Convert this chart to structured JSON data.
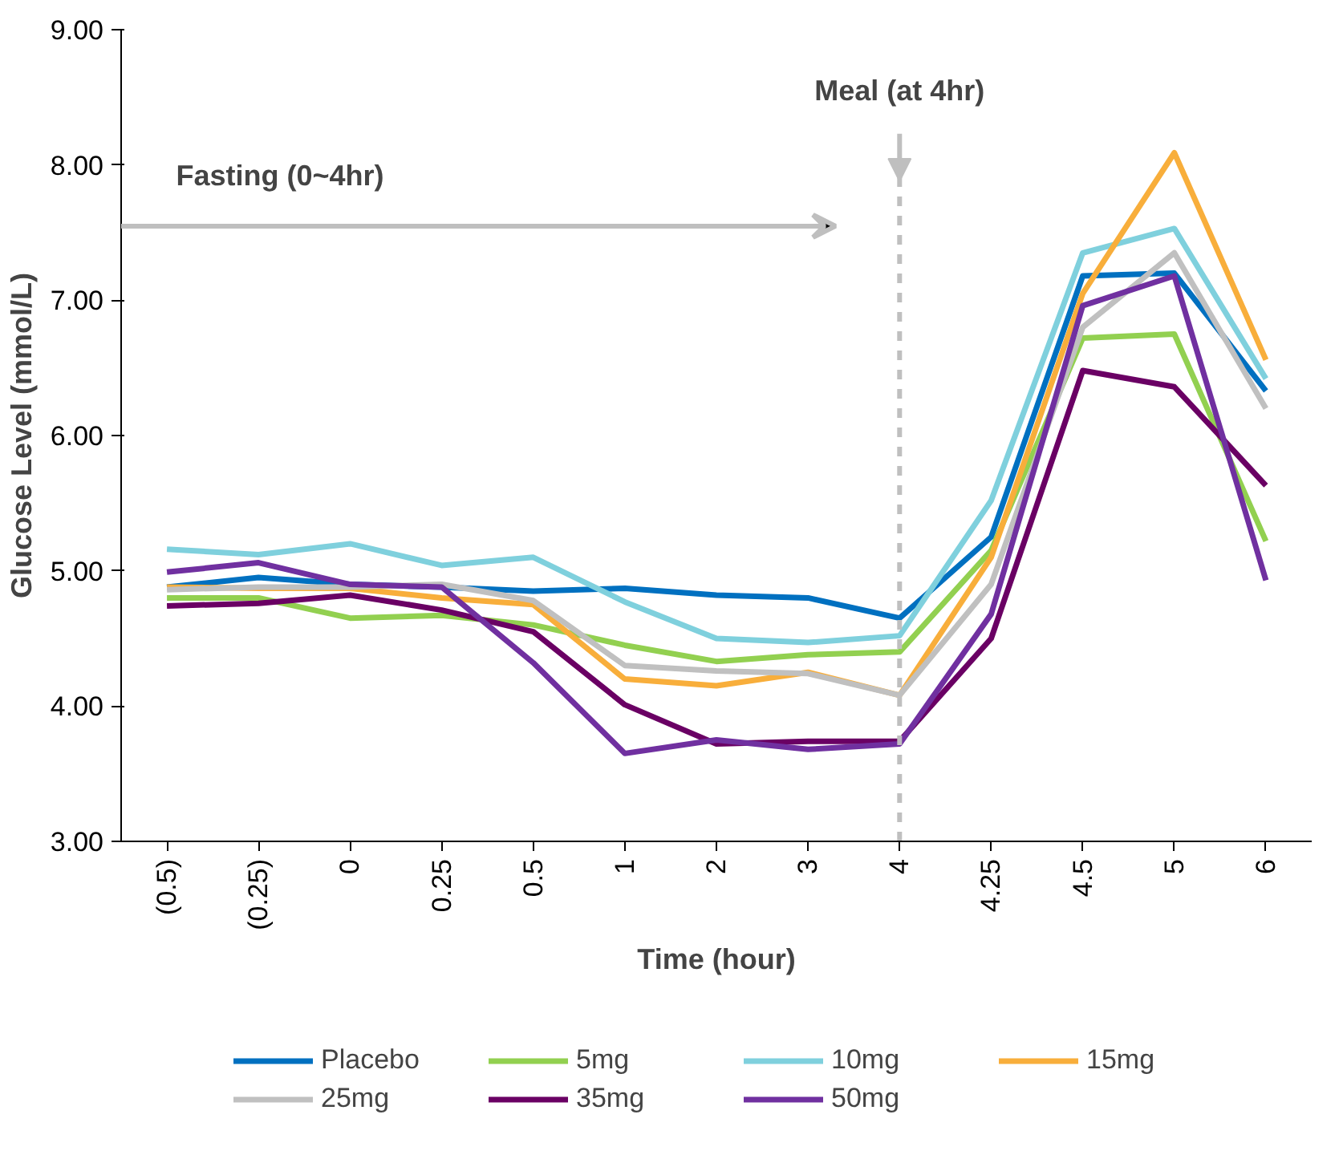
{
  "chart_data": {
    "type": "line",
    "xlabel": "Time (hour)",
    "ylabel": "Glucose Level (mmol/L)",
    "categories": [
      "(0.5)",
      "(0.25)",
      "0",
      "0.25",
      "0.5",
      "1",
      "2",
      "3",
      "4",
      "4.25",
      "4.5",
      "5",
      "6"
    ],
    "ylim": [
      3,
      9
    ],
    "yticks": [
      {
        "value": 3,
        "label": "3.00"
      },
      {
        "value": 4,
        "label": "4.00"
      },
      {
        "value": 5,
        "label": "5.00"
      },
      {
        "value": 6,
        "label": "6.00"
      },
      {
        "value": 7,
        "label": "7.00"
      },
      {
        "value": 8,
        "label": "8.00"
      },
      {
        "value": 9,
        "label": "9.00"
      }
    ],
    "grid": false,
    "legend": "bottom",
    "marker": "none",
    "line_style": "solid",
    "series": [
      {
        "name": "Placebo",
        "color": "#0070c0",
        "values": [
          4.88,
          4.95,
          4.9,
          4.88,
          4.85,
          4.87,
          4.82,
          4.8,
          4.65,
          5.25,
          7.18,
          7.2,
          6.33
        ]
      },
      {
        "name": "5mg",
        "color": "#92d050",
        "values": [
          4.8,
          4.8,
          4.65,
          4.67,
          4.6,
          4.45,
          4.33,
          4.38,
          4.4,
          5.15,
          6.72,
          6.75,
          5.22
        ]
      },
      {
        "name": "10mg",
        "color": "#7fd0dd",
        "values": [
          5.16,
          5.12,
          5.2,
          5.04,
          5.1,
          4.77,
          4.5,
          4.47,
          4.52,
          5.52,
          7.35,
          7.53,
          6.42
        ]
      },
      {
        "name": "15mg",
        "color": "#f8ae3b",
        "values": [
          4.88,
          4.87,
          4.87,
          4.8,
          4.75,
          4.2,
          4.15,
          4.25,
          4.08,
          5.1,
          7.05,
          8.09,
          6.56
        ]
      },
      {
        "name": "25mg",
        "color": "#c0c0c0",
        "values": [
          4.86,
          4.88,
          4.88,
          4.9,
          4.78,
          4.3,
          4.26,
          4.24,
          4.08,
          4.9,
          6.8,
          7.35,
          6.2
        ]
      },
      {
        "name": "35mg",
        "color": "#6a0064",
        "values": [
          4.74,
          4.76,
          4.82,
          4.71,
          4.55,
          4.01,
          3.72,
          3.74,
          3.74,
          4.5,
          6.48,
          6.36,
          5.63
        ]
      },
      {
        "name": "50mg",
        "color": "#7030a0",
        "values": [
          4.99,
          5.06,
          4.9,
          4.88,
          4.32,
          3.65,
          3.75,
          3.68,
          3.72,
          4.68,
          6.96,
          7.18,
          4.93
        ]
      }
    ],
    "ref_lines": [
      {
        "axis": "x",
        "value": "4",
        "label": "Meal (at 4hr)",
        "color": "#bfbfbf",
        "line_style": "dashed"
      }
    ],
    "annotations": [
      "Fasting (0~4hr)"
    ]
  }
}
